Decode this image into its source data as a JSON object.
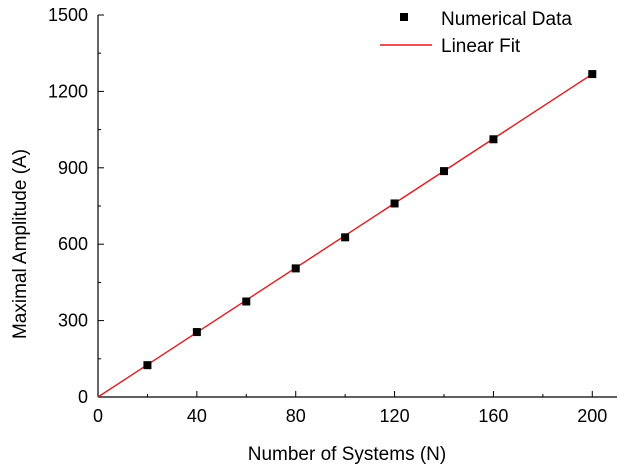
{
  "chart_data": {
    "type": "scatter",
    "title": "",
    "xlabel": "Number of Systems (N)",
    "ylabel": "Maximal Amplitude (A)",
    "xlim": [
      0,
      210
    ],
    "ylim": [
      0,
      1500
    ],
    "xticks": [
      0,
      40,
      80,
      120,
      160,
      200
    ],
    "xtick_labels": [
      "0",
      "40",
      "80",
      "120",
      "160",
      "200"
    ],
    "yticks": [
      0,
      300,
      600,
      900,
      1200,
      1500
    ],
    "ytick_labels": [
      "0",
      "300",
      "600",
      "900",
      "1200",
      "1500"
    ],
    "grid": false,
    "legend_position": "top-right",
    "series": [
      {
        "name": "Numerical Data",
        "kind": "scatter",
        "marker": "square",
        "color": "#000000",
        "x": [
          20,
          40,
          60,
          80,
          100,
          120,
          140,
          160,
          200
        ],
        "y": [
          125,
          255,
          375,
          505,
          627,
          760,
          887,
          1012,
          1268
        ]
      },
      {
        "name": "Linear Fit",
        "kind": "line",
        "color": "#e31a1c",
        "x": [
          0,
          200
        ],
        "y": [
          0,
          1268
        ]
      }
    ]
  }
}
